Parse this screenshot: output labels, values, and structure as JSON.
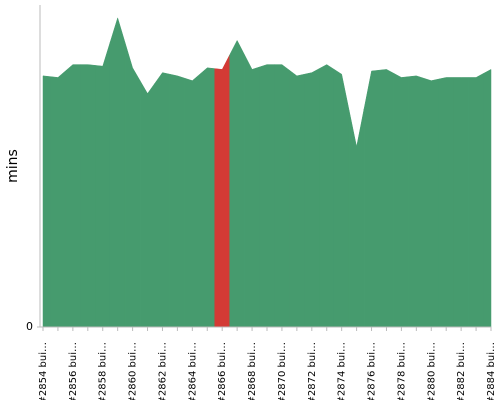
{
  "chart_data": {
    "type": "area",
    "ylabel": "mins",
    "categories": [
      "#2854 bui…",
      null,
      "#2856 bui…",
      null,
      "#2858 bui…",
      null,
      "#2860 bui…",
      null,
      "#2862 bui…",
      null,
      "#2864 bui…",
      null,
      "#2866 bui…",
      null,
      "#2868 bui…",
      null,
      "#2870 bui…",
      null,
      "#2872 bui…",
      null,
      "#2874 bui…",
      null,
      "#2876 bui…",
      null,
      "#2878 bui…",
      null,
      "#2880 bui…",
      null,
      "#2882 bui…",
      null,
      "#2884 bui…"
    ],
    "values": [
      15.6,
      15.5,
      16.3,
      16.3,
      16.2,
      19.2,
      16.1,
      14.5,
      15.8,
      15.6,
      15.3,
      16.1,
      16.0,
      17.8,
      16.0,
      16.3,
      16.3,
      15.6,
      15.8,
      16.3,
      15.7,
      11.2,
      15.9,
      16.0,
      15.5,
      15.6,
      15.3,
      15.5,
      15.5,
      15.5,
      16.0
    ],
    "colors": [
      "#469b6e",
      "#469b6e",
      "#469b6e",
      "#469b6e",
      "#469b6e",
      "#469b6e",
      "#469b6e",
      "#469b6e",
      "#469b6e",
      "#469b6e",
      "#469b6e",
      "#469b6e",
      "#d33a35",
      "#469b6e",
      "#469b6e",
      "#469b6e",
      "#469b6e",
      "#469b6e",
      "#469b6e",
      "#469b6e",
      "#469b6e",
      "#469b6e",
      "#469b6e",
      "#469b6e",
      "#469b6e",
      "#469b6e",
      "#469b6e",
      "#469b6e",
      "#469b6e",
      "#469b6e",
      "#469b6e"
    ],
    "ylim": [
      0,
      20
    ],
    "yticks": [
      0
    ],
    "grid": false
  }
}
